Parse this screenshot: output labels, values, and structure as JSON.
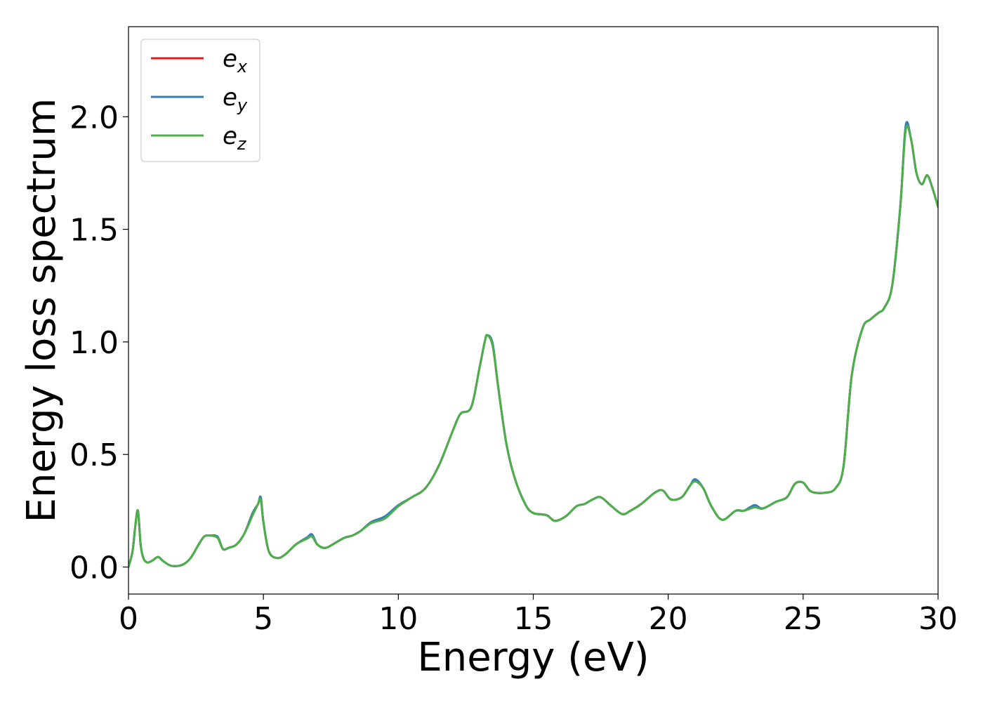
{
  "chart_data": {
    "type": "line",
    "title": "",
    "xlabel": "Energy (eV)",
    "ylabel": "Energy loss spectrum",
    "xlim": [
      0,
      30
    ],
    "ylim": [
      -0.12,
      2.4
    ],
    "xticks": [
      0,
      5,
      10,
      15,
      20,
      25,
      30
    ],
    "xtick_labels": [
      "0",
      "5",
      "10",
      "15",
      "20",
      "25",
      "30"
    ],
    "yticks": [
      0.0,
      0.5,
      1.0,
      1.5,
      2.0
    ],
    "ytick_labels": [
      "0.0",
      "0.5",
      "1.0",
      "1.5",
      "2.0"
    ],
    "grid": false,
    "legend_position": "top-left",
    "series": [
      {
        "name_base": "e",
        "name_sub": "x",
        "color": "#e41a1c",
        "x": [
          0,
          0.15,
          0.25,
          0.35,
          0.45,
          0.55,
          0.7,
          0.9,
          1.1,
          1.3,
          1.6,
          2.0,
          2.3,
          2.6,
          2.8,
          3.0,
          3.3,
          3.5,
          3.7,
          4.0,
          4.3,
          4.6,
          4.8,
          4.9,
          5.0,
          5.2,
          5.5,
          5.8,
          6.2,
          6.6,
          6.8,
          7.0,
          7.3,
          7.7,
          8.0,
          8.3,
          8.6,
          9.0,
          9.5,
          10.0,
          10.5,
          11.0,
          11.5,
          12.0,
          12.3,
          12.7,
          13.0,
          13.2,
          13.3,
          13.5,
          13.7,
          14.0,
          14.3,
          14.7,
          15.0,
          15.5,
          15.8,
          16.2,
          16.6,
          16.9,
          17.2,
          17.5,
          17.9,
          18.3,
          18.6,
          19.0,
          19.5,
          19.8,
          20.1,
          20.5,
          20.8,
          21.0,
          21.3,
          21.6,
          22.0,
          22.5,
          22.8,
          23.2,
          23.5,
          24.0,
          24.4,
          24.7,
          25.0,
          25.3,
          25.8,
          26.2,
          26.5,
          26.8,
          27.2,
          27.5,
          27.8,
          28.0,
          28.3,
          28.6,
          28.8,
          29.0,
          29.2,
          29.4,
          29.6,
          29.8,
          30.0
        ],
        "y": [
          0.0,
          0.07,
          0.18,
          0.25,
          0.1,
          0.04,
          0.02,
          0.03,
          0.045,
          0.025,
          0.005,
          0.01,
          0.04,
          0.1,
          0.135,
          0.14,
          0.13,
          0.08,
          0.085,
          0.1,
          0.15,
          0.24,
          0.28,
          0.31,
          0.2,
          0.07,
          0.04,
          0.055,
          0.1,
          0.13,
          0.14,
          0.1,
          0.085,
          0.11,
          0.13,
          0.14,
          0.16,
          0.2,
          0.22,
          0.27,
          0.31,
          0.35,
          0.45,
          0.6,
          0.68,
          0.71,
          0.88,
          1.0,
          1.03,
          0.98,
          0.8,
          0.55,
          0.4,
          0.28,
          0.24,
          0.23,
          0.205,
          0.225,
          0.27,
          0.28,
          0.3,
          0.31,
          0.27,
          0.235,
          0.25,
          0.28,
          0.33,
          0.34,
          0.3,
          0.31,
          0.36,
          0.385,
          0.35,
          0.27,
          0.21,
          0.25,
          0.25,
          0.27,
          0.26,
          0.29,
          0.31,
          0.37,
          0.375,
          0.335,
          0.33,
          0.35,
          0.45,
          0.85,
          1.06,
          1.1,
          1.13,
          1.15,
          1.25,
          1.6,
          1.95,
          1.9,
          1.75,
          1.7,
          1.74,
          1.68,
          1.6
        ]
      },
      {
        "name_base": "e",
        "name_sub": "y",
        "color": "#377eb8",
        "x": [
          0,
          0.15,
          0.25,
          0.35,
          0.45,
          0.55,
          0.7,
          0.9,
          1.1,
          1.3,
          1.6,
          2.0,
          2.3,
          2.6,
          2.8,
          3.0,
          3.3,
          3.5,
          3.7,
          4.0,
          4.3,
          4.6,
          4.8,
          4.9,
          5.0,
          5.2,
          5.5,
          5.8,
          6.2,
          6.6,
          6.8,
          7.0,
          7.3,
          7.7,
          8.0,
          8.3,
          8.6,
          9.0,
          9.5,
          10.0,
          10.5,
          11.0,
          11.5,
          12.0,
          12.3,
          12.7,
          13.0,
          13.2,
          13.3,
          13.5,
          13.7,
          14.0,
          14.3,
          14.7,
          15.0,
          15.5,
          15.8,
          16.2,
          16.6,
          16.9,
          17.2,
          17.5,
          17.9,
          18.3,
          18.6,
          19.0,
          19.5,
          19.8,
          20.1,
          20.5,
          20.8,
          21.0,
          21.3,
          21.6,
          22.0,
          22.5,
          22.8,
          23.2,
          23.5,
          24.0,
          24.4,
          24.7,
          25.0,
          25.3,
          25.8,
          26.2,
          26.5,
          26.8,
          27.2,
          27.5,
          27.8,
          28.0,
          28.3,
          28.6,
          28.8,
          29.0,
          29.2,
          29.4,
          29.6,
          29.8,
          30.0
        ],
        "y": [
          0.0,
          0.07,
          0.18,
          0.25,
          0.1,
          0.04,
          0.02,
          0.03,
          0.045,
          0.025,
          0.005,
          0.01,
          0.04,
          0.1,
          0.135,
          0.14,
          0.135,
          0.08,
          0.085,
          0.1,
          0.15,
          0.24,
          0.28,
          0.31,
          0.2,
          0.07,
          0.04,
          0.055,
          0.1,
          0.13,
          0.145,
          0.1,
          0.085,
          0.11,
          0.13,
          0.14,
          0.16,
          0.2,
          0.225,
          0.275,
          0.31,
          0.35,
          0.45,
          0.6,
          0.68,
          0.71,
          0.88,
          1.0,
          1.03,
          0.99,
          0.8,
          0.55,
          0.4,
          0.28,
          0.24,
          0.23,
          0.205,
          0.225,
          0.27,
          0.28,
          0.3,
          0.31,
          0.27,
          0.235,
          0.25,
          0.28,
          0.33,
          0.34,
          0.3,
          0.31,
          0.36,
          0.39,
          0.35,
          0.27,
          0.21,
          0.25,
          0.25,
          0.275,
          0.26,
          0.29,
          0.31,
          0.37,
          0.375,
          0.335,
          0.33,
          0.35,
          0.45,
          0.85,
          1.06,
          1.1,
          1.13,
          1.15,
          1.25,
          1.6,
          1.96,
          1.9,
          1.75,
          1.7,
          1.74,
          1.68,
          1.6
        ]
      },
      {
        "name_base": "e",
        "name_sub": "z",
        "color": "#4daf4a",
        "x": [
          0,
          0.15,
          0.25,
          0.35,
          0.45,
          0.55,
          0.7,
          0.9,
          1.1,
          1.3,
          1.6,
          2.0,
          2.3,
          2.6,
          2.8,
          3.0,
          3.3,
          3.5,
          3.7,
          4.0,
          4.3,
          4.6,
          4.8,
          4.9,
          5.0,
          5.2,
          5.5,
          5.8,
          6.2,
          6.6,
          6.8,
          7.0,
          7.3,
          7.7,
          8.0,
          8.3,
          8.6,
          9.0,
          9.5,
          10.0,
          10.5,
          11.0,
          11.5,
          12.0,
          12.3,
          12.7,
          13.0,
          13.2,
          13.3,
          13.5,
          13.7,
          14.0,
          14.3,
          14.7,
          15.0,
          15.5,
          15.8,
          16.2,
          16.6,
          16.9,
          17.2,
          17.5,
          17.9,
          18.3,
          18.6,
          19.0,
          19.5,
          19.8,
          20.1,
          20.5,
          20.8,
          21.0,
          21.3,
          21.6,
          22.0,
          22.5,
          22.8,
          23.2,
          23.5,
          24.0,
          24.4,
          24.7,
          25.0,
          25.3,
          25.8,
          26.2,
          26.5,
          26.8,
          27.2,
          27.5,
          27.8,
          28.0,
          28.3,
          28.6,
          28.8,
          29.0,
          29.2,
          29.4,
          29.6,
          29.8,
          30.0
        ],
        "y": [
          0.0,
          0.07,
          0.18,
          0.25,
          0.1,
          0.04,
          0.02,
          0.03,
          0.045,
          0.025,
          0.005,
          0.01,
          0.04,
          0.1,
          0.135,
          0.14,
          0.13,
          0.08,
          0.085,
          0.1,
          0.15,
          0.23,
          0.28,
          0.3,
          0.2,
          0.07,
          0.04,
          0.055,
          0.1,
          0.125,
          0.135,
          0.1,
          0.085,
          0.11,
          0.13,
          0.14,
          0.16,
          0.195,
          0.215,
          0.27,
          0.31,
          0.35,
          0.45,
          0.6,
          0.68,
          0.71,
          0.88,
          1.0,
          1.03,
          0.98,
          0.8,
          0.55,
          0.4,
          0.28,
          0.24,
          0.23,
          0.205,
          0.225,
          0.27,
          0.28,
          0.3,
          0.31,
          0.27,
          0.235,
          0.25,
          0.28,
          0.33,
          0.34,
          0.3,
          0.31,
          0.36,
          0.38,
          0.35,
          0.27,
          0.21,
          0.25,
          0.25,
          0.265,
          0.26,
          0.29,
          0.31,
          0.37,
          0.375,
          0.335,
          0.33,
          0.35,
          0.45,
          0.85,
          1.06,
          1.1,
          1.13,
          1.15,
          1.25,
          1.6,
          1.94,
          1.9,
          1.75,
          1.7,
          1.74,
          1.68,
          1.6
        ]
      }
    ]
  }
}
